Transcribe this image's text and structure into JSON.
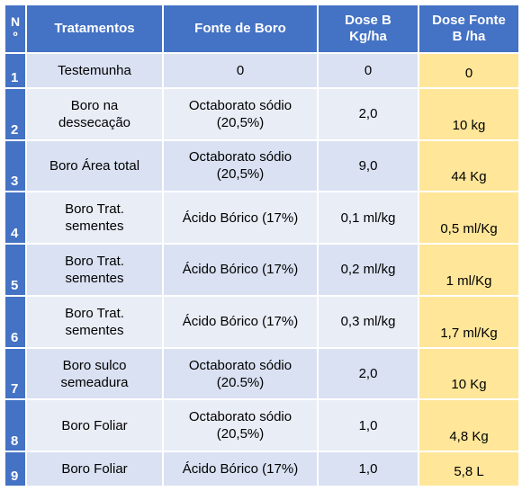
{
  "headers": {
    "num_line1": "N",
    "num_line2": "º",
    "treatment": "Tratamentos",
    "source": "Fonte de Boro",
    "dose_line1": "Dose B",
    "dose_line2": "Kg/ha",
    "source_dose_line1": "Dose Fonte",
    "source_dose_line2": "B /ha"
  },
  "rows": [
    {
      "n": "1",
      "t1": "Testemunha",
      "t2": "",
      "f1": "0",
      "f2": "",
      "dose": "0",
      "fonte_dose": "0"
    },
    {
      "n": "2",
      "t1": "Boro na",
      "t2": "dessecação",
      "f1": "Octaborato sódio",
      "f2": "(20,5%)",
      "dose": "2,0",
      "fonte_dose": "10 kg"
    },
    {
      "n": "3",
      "t1": "Boro Área total",
      "t2": "",
      "f1": "Octaborato sódio",
      "f2": "(20,5%)",
      "dose": "9,0",
      "fonte_dose": "44 Kg"
    },
    {
      "n": "4",
      "t1": "Boro Trat.",
      "t2": "sementes",
      "f1": "Ácido Bórico (17%)",
      "f2": "",
      "dose": "0,1 ml/kg",
      "fonte_dose": "0,5 ml/Kg"
    },
    {
      "n": "5",
      "t1": "Boro Trat.",
      "t2": "sementes",
      "f1": "Ácido Bórico (17%)",
      "f2": "",
      "dose": "0,2 ml/kg",
      "fonte_dose": "1 ml/Kg"
    },
    {
      "n": "6",
      "t1": "Boro Trat.",
      "t2": "sementes",
      "f1": "Ácido Bórico (17%)",
      "f2": "",
      "dose": "0,3 ml/kg",
      "fonte_dose": "1,7 ml/Kg"
    },
    {
      "n": "7",
      "t1": "Boro sulco",
      "t2": "semeadura",
      "f1": "Octaborato sódio",
      "f2": "(20.5%)",
      "dose": "2,0",
      "fonte_dose": "10 Kg"
    },
    {
      "n": "8",
      "t1": "Boro Foliar",
      "t2": "",
      "f1": "Octaborato sódio",
      "f2": "(20,5%)",
      "dose": "1,0",
      "fonte_dose": "4,8 Kg"
    },
    {
      "n": "9",
      "t1": "Boro Foliar",
      "t2": "",
      "f1": "Ácido Bórico (17%)",
      "f2": "",
      "dose": "1,0",
      "fonte_dose": "5,8 L"
    }
  ],
  "colors": {
    "header_bg": "#4472c4",
    "row_bg": "#d9e1f2",
    "row_alt_bg": "#e9edf6",
    "highlight_bg": "#ffe699"
  }
}
